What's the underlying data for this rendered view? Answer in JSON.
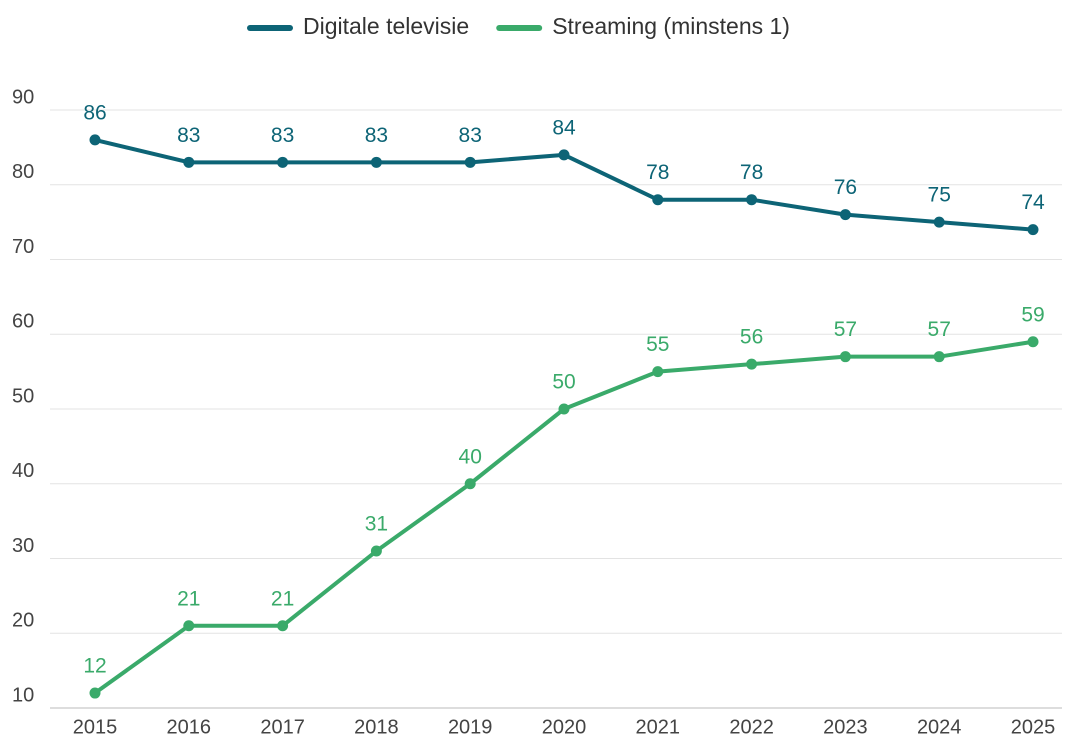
{
  "chart_data": {
    "type": "line",
    "categories": [
      "2015",
      "2016",
      "2017",
      "2018",
      "2019",
      "2020",
      "2021",
      "2022",
      "2023",
      "2024",
      "2025"
    ],
    "series": [
      {
        "name": "Digitale televisie",
        "color": "#0d6476",
        "values": [
          86,
          83,
          83,
          83,
          83,
          84,
          78,
          78,
          76,
          75,
          74
        ]
      },
      {
        "name": "Streaming (minstens 1)",
        "color": "#3aaa6a",
        "values": [
          12,
          21,
          21,
          31,
          40,
          50,
          55,
          56,
          57,
          57,
          59
        ]
      }
    ],
    "ylim": [
      10,
      90
    ],
    "yticks": [
      10,
      20,
      30,
      40,
      50,
      60,
      70,
      80,
      90
    ],
    "grid": true,
    "legend": "top"
  }
}
